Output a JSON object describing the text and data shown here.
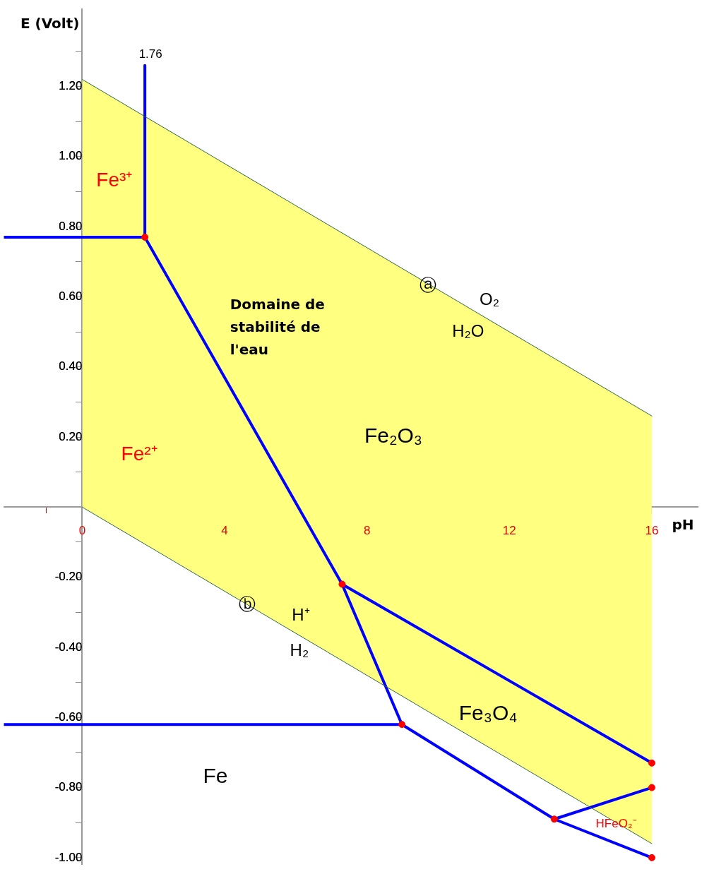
{
  "chart_data": {
    "type": "line",
    "xlabel": "pH",
    "ylabel": "E (Volt)",
    "xlim": [
      -2.2,
      17.3
    ],
    "ylim": [
      -1.02,
      1.42
    ],
    "xticks": [
      {
        "value": -1,
        "label": null
      },
      0,
      {
        "value": 1,
        "label": null
      },
      {
        "value": 2,
        "label": null
      },
      {
        "value": 3,
        "label": null
      },
      4,
      {
        "value": 5,
        "label": null
      },
      {
        "value": 6,
        "label": null
      },
      {
        "value": 7,
        "label": null
      },
      8,
      {
        "value": 9,
        "label": null
      },
      {
        "value": 10,
        "label": null
      },
      {
        "value": 11,
        "label": null
      },
      12,
      {
        "value": 13,
        "label": null
      },
      {
        "value": 14,
        "label": null
      },
      {
        "value": 15,
        "label": null
      },
      16
    ],
    "yticks": [
      {
        "value": -1,
        "label": "-1.00"
      },
      {
        "value": -0.9,
        "label": null
      },
      {
        "value": -0.8,
        "label": "-0.80"
      },
      {
        "value": -0.7,
        "label": null
      },
      {
        "value": -0.6,
        "label": "-0.60"
      },
      {
        "value": -0.5,
        "label": null
      },
      {
        "value": -0.4,
        "label": "-0.40"
      },
      {
        "value": -0.3,
        "label": null
      },
      {
        "value": -0.2,
        "label": "-0.20"
      },
      {
        "value": -0.1,
        "label": null
      },
      {
        "value": 0.1,
        "label": null
      },
      {
        "value": 0.2,
        "label": "0.20"
      },
      {
        "value": 0.3,
        "label": null
      },
      {
        "value": 0.4,
        "label": "0.40"
      },
      {
        "value": 0.5,
        "label": null
      },
      {
        "value": 0.6,
        "label": "0.60"
      },
      {
        "value": 0.7,
        "label": null
      },
      {
        "value": 0.8,
        "label": "0.80"
      },
      {
        "value": 0.9,
        "label": null
      },
      {
        "value": 1,
        "label": "1.00"
      },
      {
        "value": 1.1,
        "label": null
      },
      {
        "value": 1.2,
        "label": "1.20"
      },
      {
        "value": 1.3,
        "label": null
      }
    ],
    "grid": false,
    "legend": false,
    "series": [
      {
        "type": "line",
        "color": "#2e6650",
        "x": [
          0,
          16
        ],
        "values": [
          1.22,
          0.26
        ],
        "lower": [
          0,
          -0.96
        ],
        "upper": [
          1.22,
          0.26
        ]
      },
      {
        "type": "line",
        "color": "#2e6650",
        "x": [
          0,
          16
        ],
        "values": [
          0,
          -0.96
        ]
      },
      {
        "type": "line",
        "color": "#0000ff",
        "x": [
          -2.2,
          1.76
        ],
        "values": [
          0.77,
          0.77
        ]
      },
      {
        "type": "line",
        "color": "#0000ff",
        "x": [
          1.76,
          1.76
        ],
        "values": [
          0.77,
          1.26
        ]
      },
      {
        "type": "line",
        "color": "#0000ff",
        "x": [
          1.76,
          7.3
        ],
        "values": [
          0.77,
          -0.22
        ]
      },
      {
        "type": "line",
        "color": "#0000ff",
        "x": [
          7.3,
          8.98
        ],
        "values": [
          -0.22,
          -0.62
        ]
      },
      {
        "type": "line",
        "color": "#0000ff",
        "x": [
          7.3,
          16
        ],
        "values": [
          -0.22,
          -0.73
        ]
      },
      {
        "type": "line",
        "color": "#0000ff",
        "x": [
          -2.2,
          8.98
        ],
        "values": [
          -0.62,
          -0.62
        ]
      },
      {
        "type": "line",
        "color": "#0000ff",
        "x": [
          8.98,
          13.26
        ],
        "values": [
          -0.62,
          -0.89
        ]
      },
      {
        "type": "line",
        "color": "#0000ff",
        "x": [
          13.26,
          16
        ],
        "values": [
          -0.89,
          -0.8
        ]
      },
      {
        "type": "line",
        "color": "#0000ff",
        "x": [
          13.26,
          16
        ],
        "values": [
          -0.89,
          -1.0
        ]
      },
      {
        "type": "scatter",
        "color": "#ff0000",
        "marker": "circle",
        "x": [
          1.76,
          7.3,
          8.98,
          13.26,
          16,
          16,
          16
        ],
        "values": [
          0.77,
          -0.22,
          -0.62,
          -0.89,
          -0.73,
          -0.8,
          -1.0
        ]
      }
    ],
    "annotations": [
      "1.76",
      "Fe³⁺",
      "Fe²⁺",
      "Domaine de stabilité de l'eau",
      "ⓐ",
      "O₂",
      "H₂O",
      "Fe₂O₃",
      "ⓑ",
      "H⁺",
      "H₂",
      "Fe₃O₄",
      "Fe",
      "HFeO₂⁻"
    ]
  }
}
